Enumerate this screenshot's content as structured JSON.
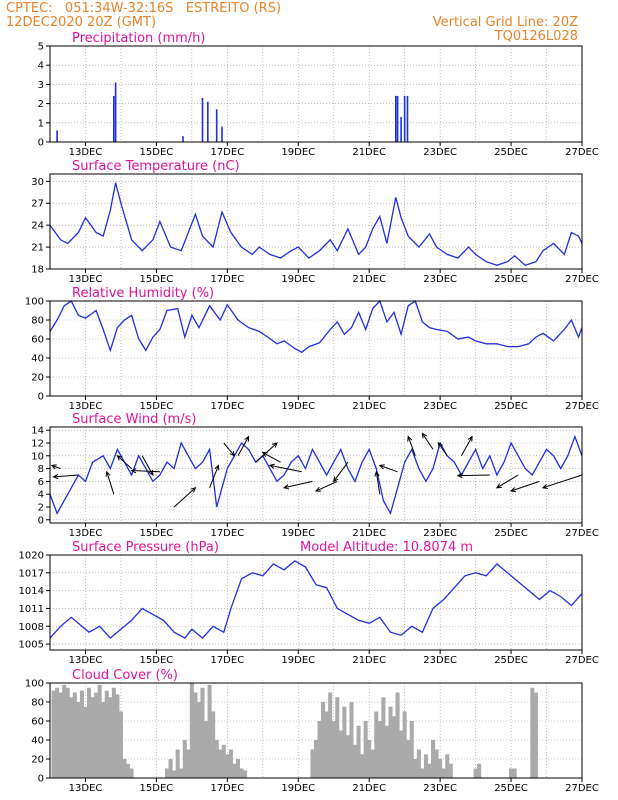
{
  "header": {
    "line1": "CPTEC:   051:34W-32:16S   ESTREITO (RS)",
    "date": "12DEC2020 20Z (GMT)",
    "grid_note": "Vertical Grid Line: 20Z",
    "code": "TQ0126L028"
  },
  "colors": {
    "line": "#1f2ee0",
    "cloud": "#aaaaaa",
    "title": "#e0149a",
    "header": "#e8832a",
    "grid": "#999999"
  },
  "chart_data": [
    {
      "type": "bar",
      "title": "Precipitation (mm/h)",
      "ylim": [
        0,
        5
      ],
      "yticks": [
        0,
        1,
        2,
        3,
        4,
        5
      ],
      "xlim": [
        12,
        27
      ],
      "xticks": [
        "13DEC",
        "15DEC",
        "17DEC",
        "19DEC",
        "21DEC",
        "23DEC",
        "25DEC",
        "27DEC"
      ],
      "x": [
        12.2,
        13.8,
        13.85,
        15.75,
        16.3,
        16.45,
        16.7,
        16.85,
        21.75,
        21.8,
        21.9,
        22.0,
        22.08
      ],
      "values": [
        0.6,
        2.4,
        3.1,
        0.3,
        2.3,
        2.1,
        1.7,
        0.8,
        2.4,
        2.4,
        1.3,
        2.4,
        2.4
      ]
    },
    {
      "type": "line",
      "title": "Surface Temperature (nC)",
      "ylim": [
        18,
        31
      ],
      "yticks": [
        18,
        21,
        24,
        27,
        30
      ],
      "xlim": [
        12,
        27
      ],
      "xticks": [
        "13DEC",
        "15DEC",
        "17DEC",
        "19DEC",
        "21DEC",
        "23DEC",
        "25DEC",
        "27DEC"
      ],
      "x": [
        12,
        12.3,
        12.5,
        12.8,
        13.0,
        13.3,
        13.5,
        13.7,
        13.85,
        14.0,
        14.3,
        14.6,
        14.9,
        15.1,
        15.4,
        15.7,
        15.9,
        16.1,
        16.3,
        16.6,
        16.85,
        17.1,
        17.4,
        17.7,
        17.9,
        18.2,
        18.5,
        18.8,
        19.0,
        19.3,
        19.6,
        19.9,
        20.1,
        20.4,
        20.7,
        20.9,
        21.1,
        21.3,
        21.5,
        21.75,
        21.9,
        22.1,
        22.4,
        22.7,
        22.9,
        23.2,
        23.5,
        23.8,
        24.0,
        24.3,
        24.6,
        24.9,
        25.1,
        25.4,
        25.7,
        25.9,
        26.2,
        26.5,
        26.7,
        26.9,
        27.0
      ],
      "values": [
        24,
        22,
        21.5,
        23,
        25,
        23,
        22.5,
        26,
        29.8,
        27,
        22,
        20.5,
        22,
        24.5,
        21,
        20.5,
        23,
        25.5,
        22.5,
        21,
        25.8,
        23,
        21,
        20,
        21,
        20,
        19.5,
        20.5,
        21,
        19.5,
        20.5,
        22,
        20.5,
        23.5,
        20,
        21,
        23.5,
        25.2,
        21.5,
        27.8,
        25,
        22.5,
        21,
        22.8,
        21,
        20,
        19.5,
        21,
        20,
        19,
        18.5,
        19,
        19.8,
        18.5,
        19,
        20.5,
        21.5,
        20,
        23,
        22.5,
        21.5
      ]
    },
    {
      "type": "line",
      "title": "Relative Humidity (%)",
      "ylim": [
        0,
        100
      ],
      "yticks": [
        0,
        20,
        40,
        60,
        80,
        100
      ],
      "xlim": [
        12,
        27
      ],
      "xticks": [
        "13DEC",
        "15DEC",
        "17DEC",
        "19DEC",
        "21DEC",
        "23DEC",
        "25DEC",
        "27DEC"
      ],
      "x": [
        12,
        12.2,
        12.4,
        12.6,
        12.8,
        13.0,
        13.3,
        13.5,
        13.7,
        13.9,
        14.1,
        14.3,
        14.5,
        14.7,
        14.9,
        15.1,
        15.3,
        15.6,
        15.8,
        16.0,
        16.2,
        16.5,
        16.8,
        17.0,
        17.3,
        17.6,
        17.9,
        18.1,
        18.4,
        18.6,
        18.9,
        19.1,
        19.3,
        19.6,
        19.9,
        20.1,
        20.3,
        20.5,
        20.7,
        20.9,
        21.1,
        21.3,
        21.5,
        21.7,
        21.9,
        22.1,
        22.3,
        22.5,
        22.7,
        22.9,
        23.2,
        23.5,
        23.8,
        24.0,
        24.3,
        24.6,
        24.9,
        25.2,
        25.5,
        25.7,
        25.9,
        26.2,
        26.5,
        26.7,
        26.9,
        27.0
      ],
      "values": [
        68,
        80,
        95,
        100,
        85,
        82,
        90,
        70,
        48,
        72,
        80,
        85,
        60,
        48,
        62,
        70,
        90,
        92,
        62,
        85,
        72,
        95,
        80,
        96,
        80,
        72,
        68,
        63,
        55,
        58,
        50,
        46,
        52,
        56,
        70,
        78,
        65,
        72,
        88,
        70,
        92,
        100,
        78,
        88,
        65,
        95,
        100,
        78,
        72,
        70,
        68,
        60,
        62,
        58,
        55,
        55,
        52,
        52,
        55,
        62,
        66,
        58,
        70,
        80,
        62,
        72
      ]
    },
    {
      "type": "line",
      "title": "Surface Wind (m/s)",
      "ylim": [
        -0.5,
        14.5
      ],
      "yticks": [
        0,
        2,
        4,
        6,
        8,
        10,
        12,
        14
      ],
      "xlim": [
        12,
        27
      ],
      "xticks": [
        "13DEC",
        "15DEC",
        "17DEC",
        "19DEC",
        "21DEC",
        "23DEC",
        "25DEC",
        "27DEC"
      ],
      "x": [
        12,
        12.1,
        12.2,
        12.4,
        12.6,
        12.8,
        13.0,
        13.2,
        13.5,
        13.7,
        13.9,
        14.1,
        14.3,
        14.5,
        14.7,
        14.9,
        15.1,
        15.3,
        15.5,
        15.7,
        15.9,
        16.1,
        16.3,
        16.5,
        16.7,
        16.85,
        17.0,
        17.2,
        17.4,
        17.6,
        17.8,
        18.0,
        18.2,
        18.4,
        18.6,
        18.8,
        19.0,
        19.2,
        19.4,
        19.6,
        19.8,
        20.0,
        20.2,
        20.4,
        20.6,
        20.8,
        21.0,
        21.2,
        21.4,
        21.6,
        21.8,
        22.0,
        22.2,
        22.4,
        22.6,
        22.8,
        23.0,
        23.2,
        23.4,
        23.6,
        23.8,
        24.0,
        24.2,
        24.4,
        24.6,
        24.8,
        25.0,
        25.2,
        25.4,
        25.6,
        25.8,
        26.0,
        26.2,
        26.4,
        26.6,
        26.8,
        27.0
      ],
      "values": [
        4,
        2.5,
        1,
        3,
        5,
        7,
        6,
        9,
        10,
        8,
        11,
        9,
        7,
        10,
        8,
        6,
        7,
        9,
        8,
        12,
        10,
        8,
        9,
        11,
        2,
        5,
        8,
        10,
        12,
        11,
        9,
        10,
        8,
        6,
        7,
        9,
        10,
        8,
        11,
        9,
        7,
        9,
        11,
        8,
        6,
        9,
        11,
        8,
        3,
        1,
        5,
        9,
        11,
        8,
        6,
        8,
        12,
        10,
        9,
        7,
        9,
        11,
        8,
        10,
        7,
        9,
        12,
        10,
        8,
        7,
        9,
        11,
        10,
        8,
        10,
        13,
        10
      ]
    },
    {
      "type": "line",
      "title": "Surface Pressure (hPa)",
      "annotation": "Model Altitude: 10.8074 m",
      "ylim": [
        1004,
        1020
      ],
      "yticks": [
        1005,
        1008,
        1011,
        1014,
        1017,
        1020
      ],
      "xlim": [
        12,
        27
      ],
      "xticks": [
        "13DEC",
        "15DEC",
        "17DEC",
        "19DEC",
        "21DEC",
        "23DEC",
        "25DEC",
        "27DEC"
      ],
      "x": [
        12,
        12.3,
        12.6,
        12.9,
        13.1,
        13.4,
        13.7,
        14.0,
        14.3,
        14.6,
        14.9,
        15.2,
        15.5,
        15.8,
        16.0,
        16.3,
        16.6,
        16.9,
        17.1,
        17.4,
        17.7,
        18.0,
        18.3,
        18.6,
        18.9,
        19.2,
        19.5,
        19.8,
        20.1,
        20.4,
        20.7,
        21.0,
        21.3,
        21.6,
        21.9,
        22.2,
        22.5,
        22.8,
        23.1,
        23.4,
        23.7,
        24.0,
        24.3,
        24.6,
        24.9,
        25.2,
        25.5,
        25.8,
        26.1,
        26.4,
        26.7,
        27.0
      ],
      "values": [
        1006,
        1008,
        1009.5,
        1008,
        1007,
        1008,
        1006,
        1007.5,
        1009,
        1011,
        1010,
        1009,
        1007,
        1006,
        1007.5,
        1006,
        1008,
        1007,
        1011,
        1016,
        1017,
        1016.5,
        1018.5,
        1017.5,
        1019,
        1018,
        1015,
        1014.5,
        1011,
        1010,
        1009,
        1008.5,
        1009.5,
        1007,
        1006.5,
        1008,
        1007,
        1011,
        1012.5,
        1014.5,
        1016.5,
        1017,
        1016.5,
        1018.5,
        1017,
        1015.5,
        1014,
        1012.5,
        1014,
        1013,
        1011.5,
        1013.5
      ]
    },
    {
      "type": "bar",
      "title": "Cloud Cover (%)",
      "ylim": [
        0,
        100
      ],
      "yticks": [
        0,
        20,
        40,
        60,
        80,
        100
      ],
      "xlim": [
        12,
        27
      ],
      "xticks": [
        "13DEC",
        "15DEC",
        "17DEC",
        "19DEC",
        "21DEC",
        "23DEC",
        "25DEC",
        "27DEC"
      ],
      "x": [
        12.1,
        12.2,
        12.3,
        12.4,
        12.5,
        12.6,
        12.7,
        12.8,
        12.9,
        13.0,
        13.1,
        13.2,
        13.3,
        13.4,
        13.5,
        13.6,
        13.7,
        13.8,
        13.9,
        14.0,
        14.1,
        14.2,
        14.3,
        15.3,
        15.4,
        15.5,
        15.6,
        15.7,
        15.8,
        15.9,
        16.0,
        16.1,
        16.2,
        16.3,
        16.4,
        16.5,
        16.6,
        16.7,
        16.8,
        16.9,
        17.0,
        17.1,
        17.2,
        17.3,
        17.4,
        17.5,
        19.4,
        19.5,
        19.6,
        19.7,
        19.8,
        19.9,
        20.0,
        20.1,
        20.2,
        20.3,
        20.4,
        20.5,
        20.6,
        20.7,
        20.8,
        20.9,
        21.0,
        21.1,
        21.2,
        21.3,
        21.4,
        21.5,
        21.6,
        21.7,
        21.8,
        21.9,
        22.0,
        22.1,
        22.2,
        22.3,
        22.4,
        22.5,
        22.6,
        22.7,
        22.8,
        22.9,
        23.0,
        23.1,
        23.2,
        23.3,
        24.0,
        24.1,
        25.0,
        25.1,
        25.6,
        25.7
      ],
      "values": [
        92,
        95,
        90,
        98,
        95,
        85,
        90,
        80,
        92,
        75,
        95,
        85,
        90,
        98,
        80,
        92,
        85,
        95,
        88,
        70,
        20,
        15,
        10,
        10,
        20,
        8,
        30,
        10,
        40,
        30,
        100,
        90,
        80,
        95,
        60,
        98,
        70,
        40,
        30,
        35,
        25,
        30,
        15,
        20,
        10,
        8,
        30,
        40,
        60,
        80,
        70,
        90,
        60,
        85,
        50,
        75,
        45,
        80,
        35,
        55,
        25,
        60,
        40,
        30,
        70,
        60,
        85,
        55,
        75,
        65,
        90,
        50,
        70,
        40,
        60,
        20,
        30,
        10,
        25,
        15,
        40,
        30,
        20,
        10,
        25,
        15,
        10,
        15,
        10,
        10,
        95,
        90
      ]
    }
  ],
  "wind_arrows": [
    {
      "x": 12.3,
      "y": 8,
      "dx": -0.25,
      "dy": 0.5
    },
    {
      "x": 12.8,
      "y": 7,
      "dx": -0.7,
      "dy": -0.3
    },
    {
      "x": 13.8,
      "y": 4,
      "dx": -0.2,
      "dy": 3.5
    },
    {
      "x": 14.3,
      "y": 8,
      "dx": -0.4,
      "dy": 2
    },
    {
      "x": 14.6,
      "y": 10,
      "dx": 0.3,
      "dy": -3
    },
    {
      "x": 15.1,
      "y": 7.5,
      "dx": -0.8,
      "dy": 0.2
    },
    {
      "x": 15.5,
      "y": 2,
      "dx": 0.6,
      "dy": 3
    },
    {
      "x": 16.5,
      "y": 5,
      "dx": 0.25,
      "dy": 3.5
    },
    {
      "x": 16.9,
      "y": 12,
      "dx": 0.3,
      "dy": -2
    },
    {
      "x": 17.3,
      "y": 10,
      "dx": 0.3,
      "dy": 3
    },
    {
      "x": 17.8,
      "y": 9,
      "dx": 0.6,
      "dy": 3
    },
    {
      "x": 18.5,
      "y": 9,
      "dx": -0.5,
      "dy": 1.5
    },
    {
      "x": 19.1,
      "y": 7.5,
      "dx": -0.9,
      "dy": 1
    },
    {
      "x": 19.4,
      "y": 6,
      "dx": -0.8,
      "dy": -1
    },
    {
      "x": 20.1,
      "y": 6,
      "dx": -0.6,
      "dy": -1.5
    },
    {
      "x": 20.4,
      "y": 9,
      "dx": -0.4,
      "dy": -3
    },
    {
      "x": 21.3,
      "y": 4,
      "dx": -0.1,
      "dy": 3.5
    },
    {
      "x": 21.8,
      "y": 7.5,
      "dx": -0.5,
      "dy": 1
    },
    {
      "x": 22.3,
      "y": 10,
      "dx": -0.2,
      "dy": 3
    },
    {
      "x": 22.8,
      "y": 11,
      "dx": -0.3,
      "dy": 2.5
    },
    {
      "x": 23.2,
      "y": 10,
      "dx": -0.25,
      "dy": 2
    },
    {
      "x": 23.6,
      "y": 10,
      "dx": 0.3,
      "dy": 3
    },
    {
      "x": 24.4,
      "y": 7,
      "dx": -0.9,
      "dy": -0.1
    },
    {
      "x": 25.2,
      "y": 7,
      "dx": -0.6,
      "dy": -2
    },
    {
      "x": 25.8,
      "y": 6,
      "dx": -0.8,
      "dy": -1.5
    },
    {
      "x": 27.0,
      "y": 7,
      "dx": -1.1,
      "dy": -2
    }
  ]
}
